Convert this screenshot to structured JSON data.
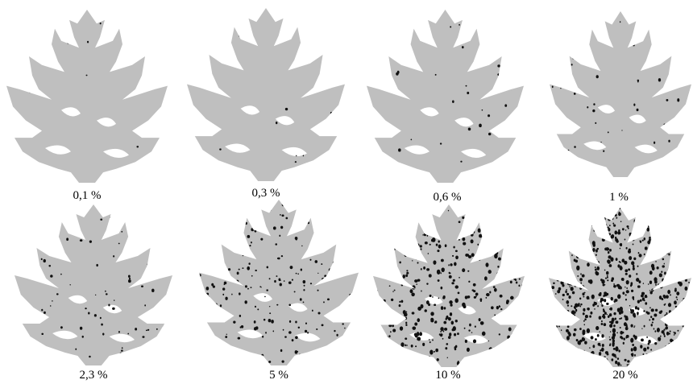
{
  "figure": {
    "panels": [
      {
        "label": "0,1 %",
        "severity_percent": 0.1
      },
      {
        "label": "0,3 %",
        "severity_percent": 0.3
      },
      {
        "label": "0,6 %",
        "severity_percent": 0.6
      },
      {
        "label": "1 %",
        "severity_percent": 1
      },
      {
        "label": "2,3 %",
        "severity_percent": 2.3
      },
      {
        "label": "5 %",
        "severity_percent": 5
      },
      {
        "label": "10 %",
        "severity_percent": 10
      },
      {
        "label": "20 %",
        "severity_percent": 20
      }
    ],
    "colors": {
      "leaf": "#bfbfbf",
      "lesion": "#111111",
      "background": "#ffffff"
    }
  }
}
